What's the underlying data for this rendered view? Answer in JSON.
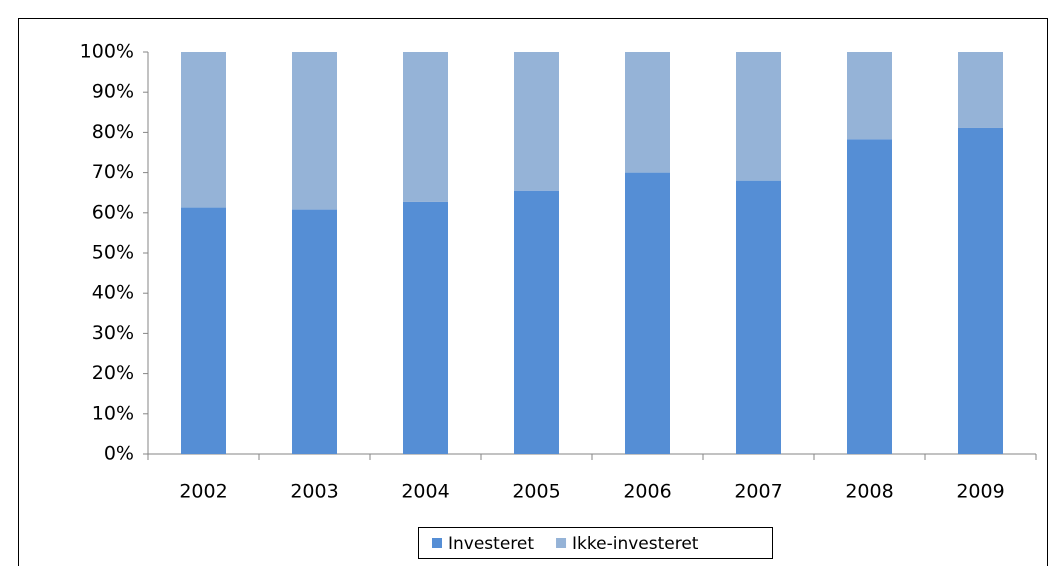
{
  "chart_data": {
    "type": "stacked_bar",
    "categories": [
      "2002",
      "2003",
      "2004",
      "2005",
      "2006",
      "2007",
      "2008",
      "2009"
    ],
    "series": [
      {
        "name": "Investeret",
        "color": "#558ed5",
        "values": [
          61.3,
          60.8,
          62.7,
          65.5,
          70,
          68,
          78.3,
          81.1
        ]
      },
      {
        "name": "Ikke-investeret",
        "color": "#95b3d7",
        "values": [
          38.7,
          39.2,
          37.3,
          34.5,
          30,
          32,
          21.7,
          18.9
        ]
      }
    ],
    "ylim": [
      0,
      100
    ],
    "yticks": [
      {
        "value": 0,
        "label": "0%"
      },
      {
        "value": 10,
        "label": "10%"
      },
      {
        "value": 20,
        "label": "20%"
      },
      {
        "value": 30,
        "label": "30%"
      },
      {
        "value": 40,
        "label": "40%"
      },
      {
        "value": 50,
        "label": "50%"
      },
      {
        "value": 60,
        "label": "60%"
      },
      {
        "value": 70,
        "label": "70%"
      },
      {
        "value": 80,
        "label": "80%"
      },
      {
        "value": 90,
        "label": "90%"
      },
      {
        "value": 100,
        "label": "100%"
      }
    ],
    "grid": false,
    "legend": "bottom"
  }
}
